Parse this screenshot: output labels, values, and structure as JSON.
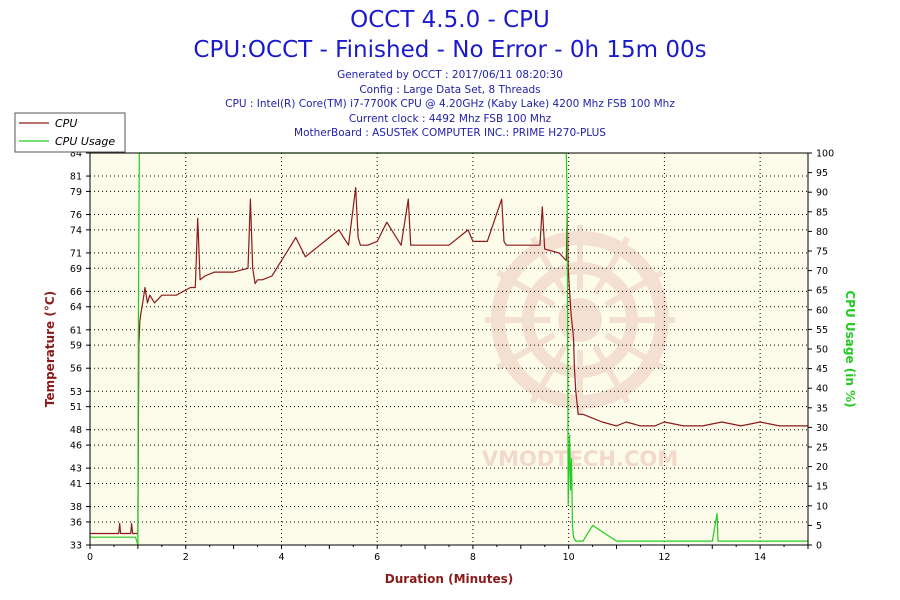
{
  "header": {
    "title": "OCCT 4.5.0 - CPU",
    "subtitle": "CPU:OCCT - Finished - No Error - 0h 15m 00s",
    "info_lines": [
      "Generated by OCCT : 2017/06/11 08:20:30",
      "Config : Large Data Set, 8 Threads",
      "CPU : Intel(R) Core(TM) i7-7700K CPU @ 4.20GHz (Kaby Lake) 4200 Mhz FSB 100 Mhz",
      "Current clock : 4492 Mhz FSB 100 Mhz",
      "MotherBoard : ASUSTeK COMPUTER INC.: PRIME H270-PLUS"
    ]
  },
  "watermark": "VMODTECH.COM",
  "colors": {
    "temperature": "#8b1a1a",
    "usage": "#22cc22",
    "title": "#1a1acc",
    "info": "#2222aa",
    "axis_label_left": "#8b1a1a",
    "axis_label_right": "#22cc22",
    "plot_bg": "#fdfbe9"
  },
  "chart_data": {
    "type": "line",
    "xlabel": "Duration (Minutes)",
    "ylabel_left": "Temperature (°C)",
    "ylabel_right": "CPU Usage (in %)",
    "xlim": [
      0,
      15
    ],
    "ylim_left": [
      33,
      84
    ],
    "ylim_right": [
      0,
      100
    ],
    "x_ticks": [
      "0",
      "2",
      "4",
      "6",
      "8",
      "10",
      "12",
      "14"
    ],
    "y_left_ticks": [
      33,
      36,
      38,
      41,
      43,
      46,
      48,
      51,
      53,
      56,
      59,
      61,
      64,
      66,
      69,
      71,
      74,
      76,
      79,
      81,
      84
    ],
    "y_right_ticks": [
      0,
      5,
      10,
      15,
      20,
      25,
      30,
      35,
      40,
      45,
      50,
      55,
      60,
      65,
      70,
      75,
      80,
      85,
      90,
      95,
      100
    ],
    "grid": "dotted",
    "legend_position": "top-left",
    "series": [
      {
        "name": "CPU",
        "axis": "left",
        "x": [
          0,
          0.6,
          0.62,
          0.64,
          0.85,
          0.87,
          0.89,
          1.0,
          1.02,
          1.04,
          1.06,
          1.1,
          1.15,
          1.2,
          1.25,
          1.35,
          1.5,
          1.8,
          2.1,
          2.2,
          2.25,
          2.3,
          2.4,
          2.6,
          3.0,
          3.3,
          3.35,
          3.4,
          3.45,
          3.5,
          3.6,
          3.8,
          4.0,
          4.1,
          4.3,
          4.5,
          4.8,
          5.0,
          5.2,
          5.4,
          5.55,
          5.6,
          5.65,
          5.8,
          6.0,
          6.2,
          6.5,
          6.65,
          6.7,
          6.75,
          7.0,
          7.5,
          7.9,
          8.0,
          8.3,
          8.6,
          8.65,
          8.7,
          9.0,
          9.4,
          9.45,
          9.5,
          9.8,
          9.95,
          9.97,
          9.99,
          10.02,
          10.05,
          10.1,
          10.12,
          10.15,
          10.2,
          10.3,
          10.5,
          10.7,
          11.0,
          11.2,
          11.5,
          11.8,
          12.0,
          12.4,
          12.8,
          13.2,
          13.6,
          14.0,
          14.4,
          14.8,
          15.0
        ],
        "y": [
          34.5,
          34.5,
          35.8,
          34.5,
          34.5,
          35.8,
          34.5,
          34.5,
          59,
          62,
          63,
          64.5,
          66.5,
          64.5,
          65.5,
          64.5,
          65.5,
          65.5,
          66.5,
          66.5,
          75.5,
          67.5,
          68,
          68.5,
          68.5,
          69,
          78,
          69,
          67,
          67.5,
          67.5,
          68,
          70,
          71,
          73,
          70.5,
          72,
          73,
          74,
          72,
          79.5,
          73,
          72,
          72,
          72.5,
          75,
          72,
          78,
          72,
          72,
          72,
          72,
          74,
          72.5,
          72.5,
          78,
          72.5,
          72,
          72,
          72,
          77,
          71.5,
          71,
          70,
          76,
          69,
          66,
          63,
          60,
          56,
          53,
          50,
          50,
          49.5,
          49,
          48.5,
          49,
          48.5,
          48.5,
          49,
          48.5,
          48.5,
          49,
          48.5,
          49,
          48.5,
          48.5,
          48.5
        ]
      },
      {
        "name": "CPU Usage",
        "axis": "right",
        "x": [
          0,
          0.95,
          1.0,
          1.01,
          1.03,
          1.05,
          9.95,
          9.97,
          9.99,
          10.02,
          10.04,
          10.06,
          10.08,
          10.1,
          10.15,
          10.3,
          10.5,
          11.0,
          12.0,
          13.0,
          13.1,
          13.12,
          13.2,
          14.0,
          15.0
        ],
        "y": [
          2,
          2,
          0,
          52,
          100,
          100,
          100,
          88,
          10,
          28,
          14,
          22,
          5,
          2,
          1,
          1,
          5,
          1,
          1,
          1,
          8,
          1,
          1,
          1,
          1
        ]
      }
    ]
  }
}
